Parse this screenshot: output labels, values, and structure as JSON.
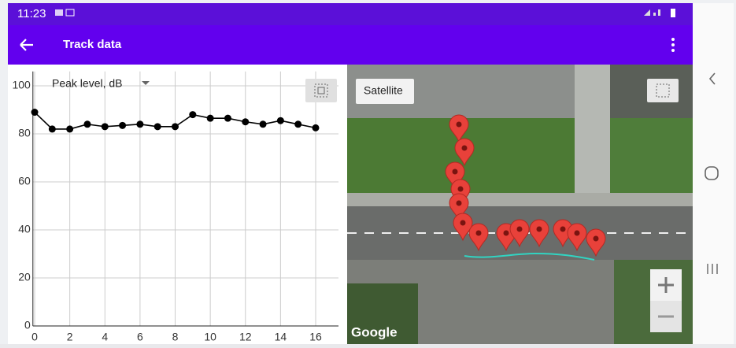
{
  "status_bar": {
    "time": "11:23"
  },
  "app_bar": {
    "title": "Track data"
  },
  "chart_data": {
    "type": "line",
    "title": "Peak level, dB",
    "x": [
      0,
      1,
      2,
      3,
      4,
      5,
      6,
      7,
      8,
      9,
      10,
      11,
      12,
      13,
      14,
      15,
      16
    ],
    "values": [
      89,
      82,
      82,
      84,
      83,
      83.5,
      84,
      83,
      83,
      88,
      86.5,
      86.5,
      85,
      84,
      85.5,
      84,
      82.5
    ],
    "color": "#000000",
    "xlim": [
      -0.1,
      17.3
    ],
    "xticks": [
      0,
      2,
      4,
      6,
      8,
      10,
      12,
      14,
      16
    ],
    "ylim": [
      0,
      106
    ],
    "yticks": [
      0,
      20,
      40,
      60,
      80,
      100
    ],
    "grid": true
  },
  "map": {
    "layer_button": "Satellite",
    "attribution": "Google"
  }
}
